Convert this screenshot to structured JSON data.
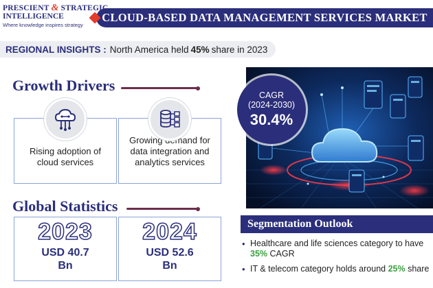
{
  "logo": {
    "line1_left": "PRESCIENT",
    "ampersand": "&",
    "line1_right": "STRATEGIC",
    "line2": "INTELLIGENCE",
    "tagline": "Where knowledge inspires strategy"
  },
  "title": "CLOUD-BASED DATA MANAGEMENT SERVICES MARKET",
  "regional": {
    "label": "REGIONAL INSIGHTS :",
    "text_before": "North America held",
    "highlight": "45%",
    "text_after": "share in 2023"
  },
  "growth_drivers": {
    "title": "Growth Drivers",
    "items": [
      {
        "icon": "cloud-circuit-icon",
        "text": "Rising adoption of cloud services"
      },
      {
        "icon": "database-network-icon",
        "text": "Growing demand for data integration and analytics services"
      }
    ]
  },
  "cagr": {
    "label": "CAGR",
    "period": "(2024-2030)",
    "value": "30.4%"
  },
  "global_statistics": {
    "title": "Global Statistics",
    "items": [
      {
        "year": "2023",
        "value_line1": "USD 40.7",
        "value_line2": "Bn"
      },
      {
        "year": "2024",
        "value_line1": "USD 52.6",
        "value_line2": "Bn"
      }
    ]
  },
  "segmentation": {
    "title": "Segmentation Outlook",
    "items": [
      {
        "before": "Healthcare and life sciences category to have",
        "highlight": "35%",
        "after": "CAGR"
      },
      {
        "before": "IT & telecom category holds around",
        "highlight": "25%",
        "after": "share"
      }
    ]
  },
  "colors": {
    "navy": "#2b2e7a",
    "red": "#e23c2c",
    "maroon": "#6e2c4c",
    "green": "#3aa040"
  }
}
